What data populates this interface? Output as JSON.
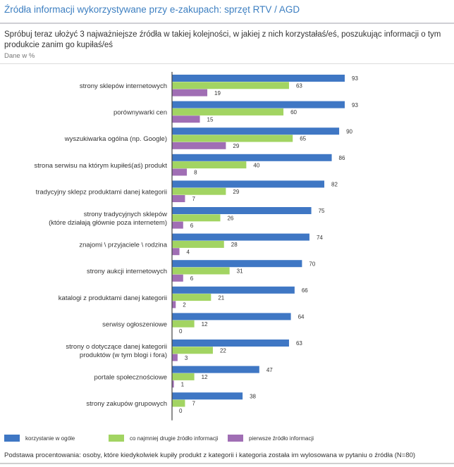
{
  "header": {
    "title": "Źródła informacji wykorzystywane przy e-zakupach: sprzęt RTV / AGD",
    "question": "Spróbuj teraz ułożyć 3 najważniejsze źródła w takiej kolejności, w jakiej z nich korzystałaś/eś, poszukując informacji o tym produkcie zanim go kupiłaś/eś",
    "unit_note": "Dane w %"
  },
  "footnote": "Podstawa procentowania: osoby, które kiedykolwiek kupiły produkt z kategorii i kategoria została im wylosowana w pytaniu o źródła (N=80)",
  "colors": {
    "title": "#3d7fc1",
    "series_1": "#3f77c4",
    "series_2": "#a2d462",
    "series_3": "#a06eb4"
  },
  "chart_data": {
    "type": "bar",
    "orientation": "horizontal",
    "title": "Źródła informacji wykorzystywane przy e-zakupach: sprzęt RTV / AGD",
    "xlabel": "",
    "ylabel": "",
    "unit": "%",
    "xlim": [
      0,
      100
    ],
    "grid": false,
    "legend_position": "bottom",
    "categories": [
      [
        "strony sklepów internetowych"
      ],
      [
        "porównywarki cen"
      ],
      [
        "wyszukiwarka ogólna (np. Google)"
      ],
      [
        "strona serwisu na którym kupiłeś(aś) produkt"
      ],
      [
        "tradycyjny sklepz produktami danej kategorii"
      ],
      [
        "strony tradycyjnych sklepów",
        "(które działają głównie poza internetem)"
      ],
      [
        "znajomi \\ przyjaciele \\ rodzina"
      ],
      [
        "strony aukcji internetowych"
      ],
      [
        "katalogi z produktami danej kategorii"
      ],
      [
        "serwisy ogłoszeniowe"
      ],
      [
        "strony o dotyczące danej kategorii",
        "produktów (w tym blogi i fora)"
      ],
      [
        "portale społecznościowe"
      ],
      [
        "strony zakupów grupowych"
      ]
    ],
    "series": [
      {
        "name": "korzystanie w ogóle",
        "color": "#3f77c4",
        "values": [
          93,
          93,
          90,
          86,
          82,
          75,
          74,
          70,
          66,
          64,
          63,
          47,
          38
        ]
      },
      {
        "name": "co najmniej drugie źródło informacji",
        "color": "#a2d462",
        "values": [
          63,
          60,
          65,
          40,
          29,
          26,
          28,
          31,
          21,
          12,
          22,
          12,
          7
        ]
      },
      {
        "name": "pierwsze źródło informacji",
        "color": "#a06eb4",
        "values": [
          19,
          15,
          29,
          8,
          7,
          6,
          4,
          6,
          2,
          0,
          3,
          1,
          0
        ]
      }
    ]
  }
}
